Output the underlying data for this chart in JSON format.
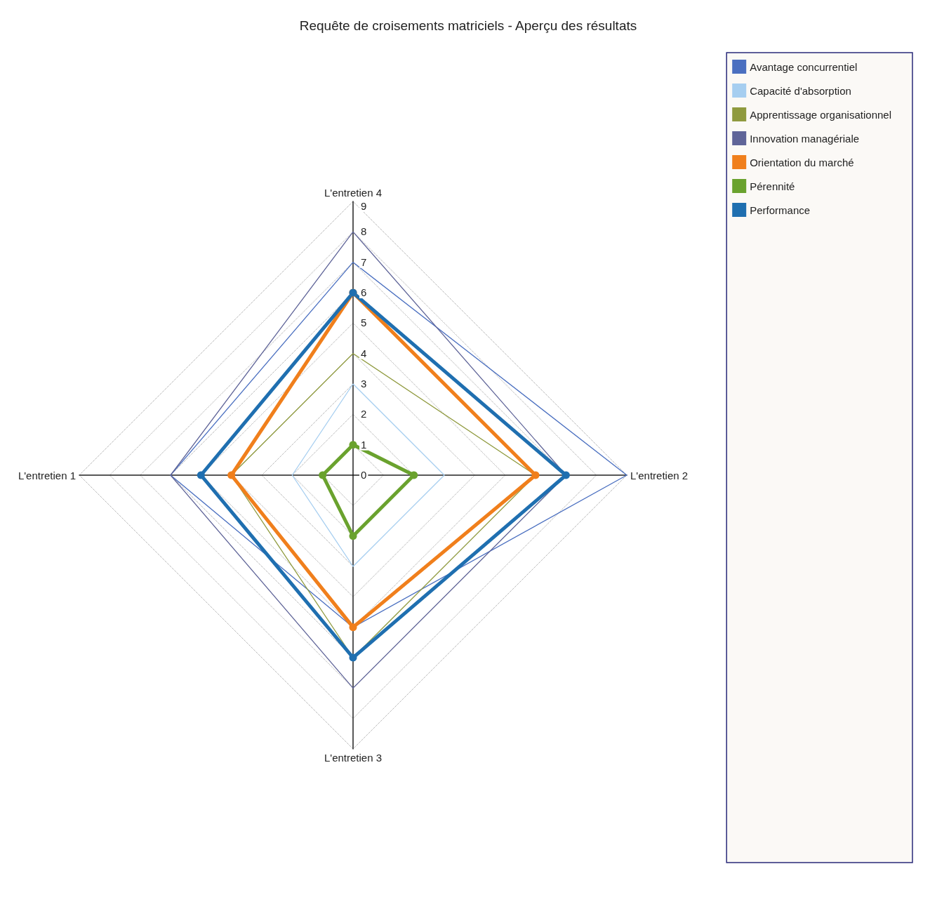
{
  "chart_data": {
    "type": "radar",
    "title": "Requête de croisements matriciels - Aperçu des résultats",
    "categories": [
      "L'entretien 4",
      "L'entretien 2",
      "L'entretien 3",
      "L'entretien 1"
    ],
    "ylim": [
      0,
      9
    ],
    "yticks": [
      0,
      1,
      2,
      3,
      4,
      5,
      6,
      7,
      8,
      9
    ],
    "grid": true,
    "legend": "right",
    "series": [
      {
        "name": "Avantage concurrentiel",
        "color": "#4a6fc0",
        "marker": "none",
        "values": [
          7,
          9,
          5,
          6
        ]
      },
      {
        "name": "Capacité d'absorption",
        "color": "#a6cef0",
        "marker": "none",
        "values": [
          3,
          3,
          3,
          2
        ]
      },
      {
        "name": "Apprentissage organisationnel",
        "color": "#8f9a3e",
        "marker": "none",
        "values": [
          4,
          6,
          6,
          4
        ]
      },
      {
        "name": "Innovation managériale",
        "color": "#5f6498",
        "marker": "none",
        "values": [
          8,
          7,
          7,
          6
        ]
      },
      {
        "name": "Orientation du marché",
        "color": "#f07f1c",
        "marker": "circle",
        "values": [
          6,
          6,
          5,
          4
        ]
      },
      {
        "name": "Pérennité",
        "color": "#6aa22e",
        "marker": "circle",
        "values": [
          1,
          2,
          2,
          1
        ]
      },
      {
        "name": "Performance",
        "color": "#1f6fb0",
        "marker": "circle",
        "values": [
          6,
          7,
          6,
          5
        ]
      }
    ]
  }
}
